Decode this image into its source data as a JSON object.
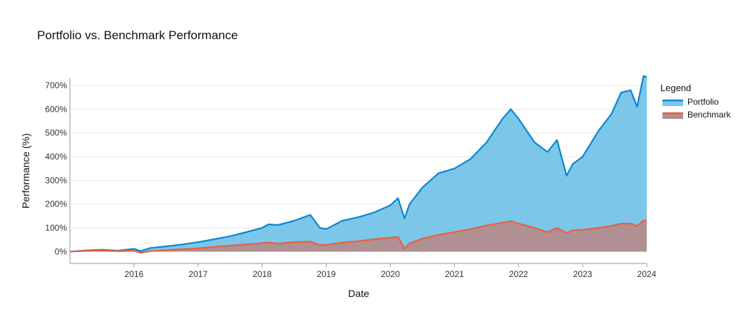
{
  "chart_data": {
    "type": "area",
    "title": "Portfolio vs. Benchmark Performance",
    "xlabel": "Date",
    "ylabel": "Performance (%)",
    "x_ticks": [
      "2016",
      "2017",
      "2018",
      "2019",
      "2020",
      "2021",
      "2022",
      "2023",
      "2024"
    ],
    "x_range": [
      2015.0,
      2024.0
    ],
    "y_ticks": [
      "0%",
      "100%",
      "200%",
      "300%",
      "400%",
      "500%",
      "600%",
      "700%"
    ],
    "ylim": [
      -50,
      760
    ],
    "grid": true,
    "legend": {
      "title": "Legend",
      "placement": "right"
    },
    "x": [
      2015.0,
      2015.25,
      2015.5,
      2015.75,
      2016.0,
      2016.1,
      2016.25,
      2016.5,
      2016.75,
      2017.0,
      2017.25,
      2017.5,
      2017.75,
      2018.0,
      2018.1,
      2018.25,
      2018.5,
      2018.75,
      2018.9,
      2019.0,
      2019.25,
      2019.5,
      2019.75,
      2020.0,
      2020.12,
      2020.22,
      2020.3,
      2020.5,
      2020.75,
      2021.0,
      2021.25,
      2021.5,
      2021.75,
      2021.88,
      2022.0,
      2022.25,
      2022.45,
      2022.6,
      2022.75,
      2022.85,
      2023.0,
      2023.25,
      2023.45,
      2023.6,
      2023.75,
      2023.85,
      2023.95,
      2024.0
    ],
    "series": [
      {
        "name": "Portfolio",
        "color": "#0a88d1",
        "fill": "#7cc6e9",
        "values": [
          0,
          5,
          8,
          4,
          12,
          2,
          15,
          22,
          30,
          40,
          52,
          65,
          82,
          100,
          115,
          112,
          130,
          155,
          100,
          95,
          130,
          145,
          165,
          195,
          225,
          140,
          200,
          270,
          330,
          350,
          390,
          460,
          560,
          600,
          560,
          460,
          420,
          470,
          320,
          370,
          400,
          510,
          580,
          670,
          680,
          610,
          740,
          735
        ]
      },
      {
        "name": "Benchmark",
        "color": "#e8603c",
        "fill": "#b09093",
        "values": [
          0,
          3,
          5,
          2,
          4,
          -5,
          2,
          6,
          10,
          14,
          20,
          25,
          30,
          36,
          38,
          34,
          40,
          42,
          28,
          28,
          38,
          44,
          52,
          58,
          62,
          12,
          35,
          55,
          70,
          82,
          95,
          110,
          122,
          128,
          118,
          100,
          82,
          100,
          78,
          90,
          92,
          100,
          108,
          118,
          118,
          108,
          130,
          132
        ]
      }
    ]
  }
}
